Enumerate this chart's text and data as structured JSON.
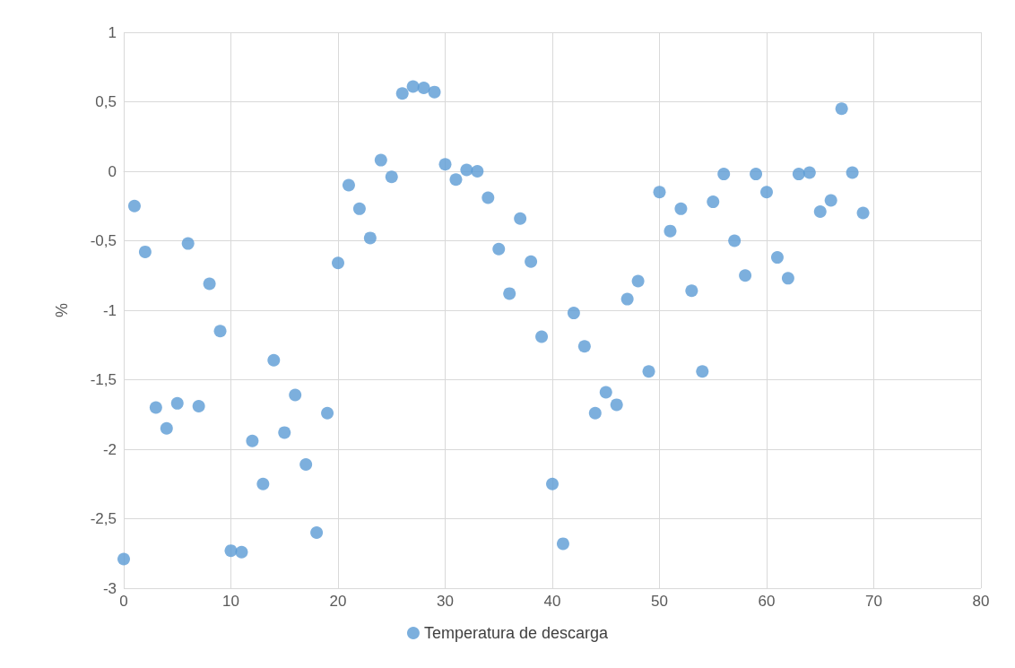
{
  "chart_data": {
    "type": "scatter",
    "ylabel": "%",
    "x": [
      0,
      1,
      2,
      3,
      4,
      5,
      6,
      7,
      8,
      9,
      10,
      11,
      12,
      13,
      14,
      15,
      16,
      17,
      18,
      19,
      20,
      21,
      22,
      23,
      24,
      25,
      26,
      27,
      28,
      29,
      30,
      31,
      32,
      33,
      34,
      35,
      36,
      37,
      38,
      39,
      40,
      41,
      42,
      43,
      44,
      45,
      46,
      47,
      48,
      49,
      50,
      51,
      52,
      53,
      54,
      55,
      56,
      57,
      58,
      59,
      60,
      61,
      62,
      63,
      64,
      65,
      66,
      67,
      68,
      69
    ],
    "series": [
      {
        "name": "Temperatura de descarga",
        "color": "#5b9bd5",
        "values": [
          -2.79,
          -0.25,
          -0.58,
          -1.7,
          -1.85,
          -1.67,
          -0.52,
          -1.69,
          -0.81,
          -1.15,
          -2.73,
          -2.74,
          -1.94,
          -2.25,
          -1.36,
          -1.88,
          -1.61,
          -2.11,
          -2.6,
          -1.74,
          -0.66,
          -0.1,
          -0.27,
          -0.48,
          0.08,
          -0.04,
          0.56,
          0.61,
          0.6,
          0.57,
          0.05,
          -0.06,
          0.01,
          0,
          -0.19,
          -0.56,
          -0.88,
          -0.34,
          -0.65,
          -1.19,
          -2.25,
          -2.68,
          -1.02,
          -1.26,
          -1.74,
          -1.59,
          -1.68,
          -0.92,
          -0.79,
          -1.44,
          -0.15,
          -0.43,
          -0.27,
          -0.86,
          -1.44,
          -0.22,
          -0.02,
          -0.5,
          -0.75,
          -0.02,
          -0.15,
          -0.62,
          -0.77,
          -0.02,
          -0.01,
          -0.29,
          -0.21,
          0.45,
          -0.01,
          -0.3
        ]
      }
    ],
    "xlim": [
      0,
      80
    ],
    "xticks": [
      0,
      10,
      20,
      30,
      40,
      50,
      60,
      70,
      80
    ],
    "ylim": [
      -3,
      1
    ],
    "yticks": [
      {
        "value": -3,
        "label": "-3"
      },
      {
        "value": -2.5,
        "label": "-2,5"
      },
      {
        "value": -2,
        "label": "-2"
      },
      {
        "value": -1.5,
        "label": "-1,5"
      },
      {
        "value": -1,
        "label": "-1"
      },
      {
        "value": -0.5,
        "label": "-0,5"
      },
      {
        "value": 0,
        "label": "0"
      },
      {
        "value": 0.5,
        "label": "0,5"
      },
      {
        "value": 1,
        "label": "1"
      }
    ],
    "grid": true,
    "legend": "bottom",
    "marker": "circle"
  }
}
